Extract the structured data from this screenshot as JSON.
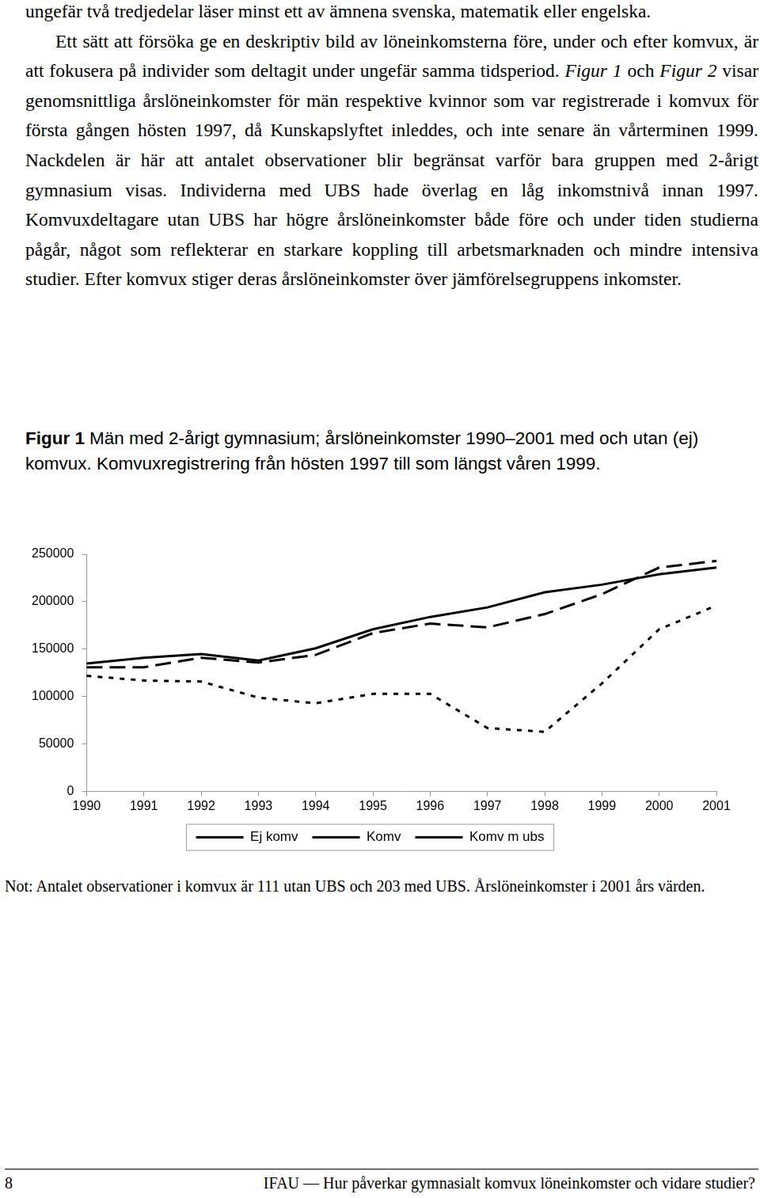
{
  "page": {
    "paragraphs": [
      {
        "indent": false,
        "segments": [
          {
            "text": "ungefär två tredjedelar läser minst ett av ämnena svenska, matematik eller engelska."
          }
        ]
      },
      {
        "indent": true,
        "segments": [
          {
            "text": "Ett sätt att försöka ge en deskriptiv bild av löneinkomsterna före, under och efter komvux, är att fokusera på individer som deltagit under ungefär samma tidsperiod. "
          },
          {
            "text": "Figur 1",
            "italic": true
          },
          {
            "text": " och "
          },
          {
            "text": "Figur 2",
            "italic": true
          },
          {
            "text": " visar genomsnittliga årslöneinkomster för män respektive kvinnor som var registrerade i komvux för första gången hösten 1997, då Kunskapslyftet inleddes, och inte senare än vårterminen 1999. Nackdelen är här att antalet observationer blir begränsat varför bara gruppen med 2-årigt gymnasium visas. Individerna med UBS hade överlag en låg inkomstnivå innan 1997. Komvuxdeltagare utan UBS har högre årslöneinkomster både före och under tiden studierna pågår, något som reflekterar en starkare koppling till arbetsmarknaden och mindre intensiva studier. Efter komvux stiger deras årslöneinkomster över jämförelsegruppens inkomster."
          }
        ]
      }
    ],
    "figure_caption": {
      "label": "Figur 1",
      "text": "Män med 2-årigt gymnasium; årslöneinkomster 1990–2001 med och utan (ej) komvux. Komvuxregistrering från hösten 1997 till som längst våren 1999."
    },
    "note": "Not: Antalet observationer i komvux är 111 utan UBS och 203 med UBS. Årslöneinkomster i 2001 års värden.",
    "footer": {
      "page_number": 8,
      "text": "IFAU — Hur påverkar gymnasialt komvux löneinkomster och vidare studier?"
    }
  },
  "chart_data": {
    "type": "line",
    "categories": [
      "1990",
      "1991",
      "1992",
      "1993",
      "1994",
      "1995",
      "1996",
      "1997",
      "1998",
      "1999",
      "2000",
      "2001"
    ],
    "series": [
      {
        "name": "Ej komv",
        "color": "#000000",
        "line_style": "solid",
        "values": [
          135000,
          141000,
          145000,
          138000,
          151000,
          171000,
          184000,
          194000,
          210000,
          218000,
          229000,
          236000
        ]
      },
      {
        "name": "Komv",
        "color": "#000000",
        "line_style": "dashed",
        "values": [
          131000,
          131000,
          141000,
          136000,
          144000,
          167000,
          177000,
          173000,
          187000,
          208000,
          236000,
          243000
        ]
      },
      {
        "name": "Komv m ubs",
        "color": "#000000",
        "line_style": "dotted",
        "values": [
          122000,
          117000,
          116000,
          99000,
          93000,
          103000,
          103000,
          67000,
          63000,
          114000,
          171000,
          196000
        ]
      }
    ],
    "ylim": [
      0,
      250000
    ],
    "yticks": [
      0,
      50000,
      100000,
      150000,
      200000,
      250000
    ],
    "grid": false,
    "legend": "bottom"
  }
}
